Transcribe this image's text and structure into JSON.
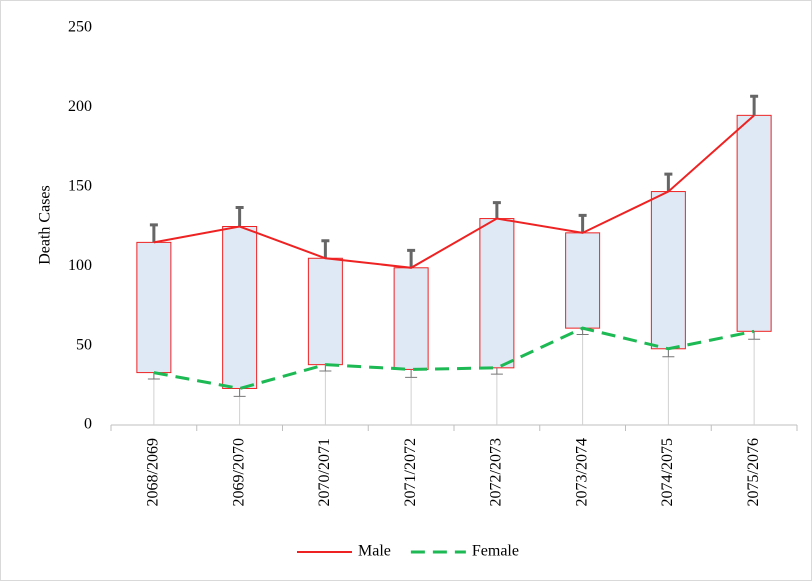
{
  "chart_data": {
    "type": "line",
    "y_label": "Death  Cases",
    "categories": [
      "2068/2069",
      "2069/2070",
      "2070/2071",
      "2071/2072",
      "2072/2073",
      "2073/2074",
      "2074/2075",
      "2075/2076"
    ],
    "series": [
      {
        "name": "Male",
        "color": "#ee2222",
        "dash": false,
        "values": [
          115,
          125,
          105,
          99,
          130,
          121,
          147,
          195
        ],
        "errors": [
          11,
          12,
          11,
          11,
          10,
          11,
          11,
          12
        ]
      },
      {
        "name": "Female",
        "color": "#1db954",
        "dash": true,
        "values": [
          33,
          23,
          38,
          35,
          36,
          61,
          48,
          59
        ],
        "errors": [
          4,
          5,
          4,
          5,
          4,
          4,
          5,
          5
        ]
      }
    ],
    "box_color": "#dfe9f6",
    "ylim": [
      0,
      250
    ],
    "yticks": [
      0,
      50,
      100,
      150,
      200,
      250
    ],
    "grid": false,
    "legend": "bottom"
  }
}
